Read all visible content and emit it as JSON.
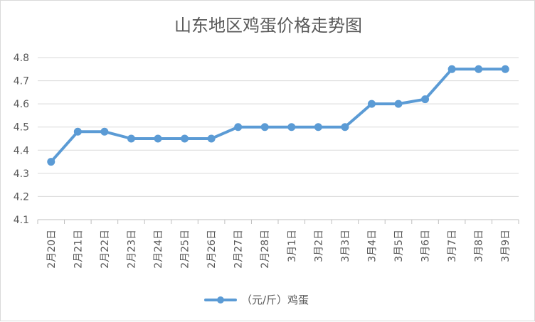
{
  "chart_data": {
    "type": "line",
    "title": "山东地区鸡蛋价格走势图",
    "xlabel": "",
    "ylabel": "",
    "categories": [
      "2月20日",
      "2月21日",
      "2月22日",
      "2月23日",
      "2月24日",
      "2月25日",
      "2月26日",
      "2月27日",
      "2月28日",
      "3月1日",
      "3月2日",
      "3月3日",
      "3月4日",
      "3月5日",
      "3月6日",
      "3月7日",
      "3月8日",
      "3月9日"
    ],
    "series": [
      {
        "name": "（元/斤）鸡蛋",
        "values": [
          4.35,
          4.48,
          4.48,
          4.45,
          4.45,
          4.45,
          4.45,
          4.5,
          4.5,
          4.5,
          4.5,
          4.5,
          4.6,
          4.6,
          4.62,
          4.75,
          4.75,
          4.75
        ]
      }
    ],
    "yticks": [
      "4.1",
      "4.2",
      "4.3",
      "4.4",
      "4.5",
      "4.6",
      "4.7",
      "4.8"
    ],
    "ylim": [
      4.1,
      4.8
    ],
    "grid": true,
    "legend": "bottom",
    "colors": {
      "series": "#5b9bd5"
    }
  }
}
